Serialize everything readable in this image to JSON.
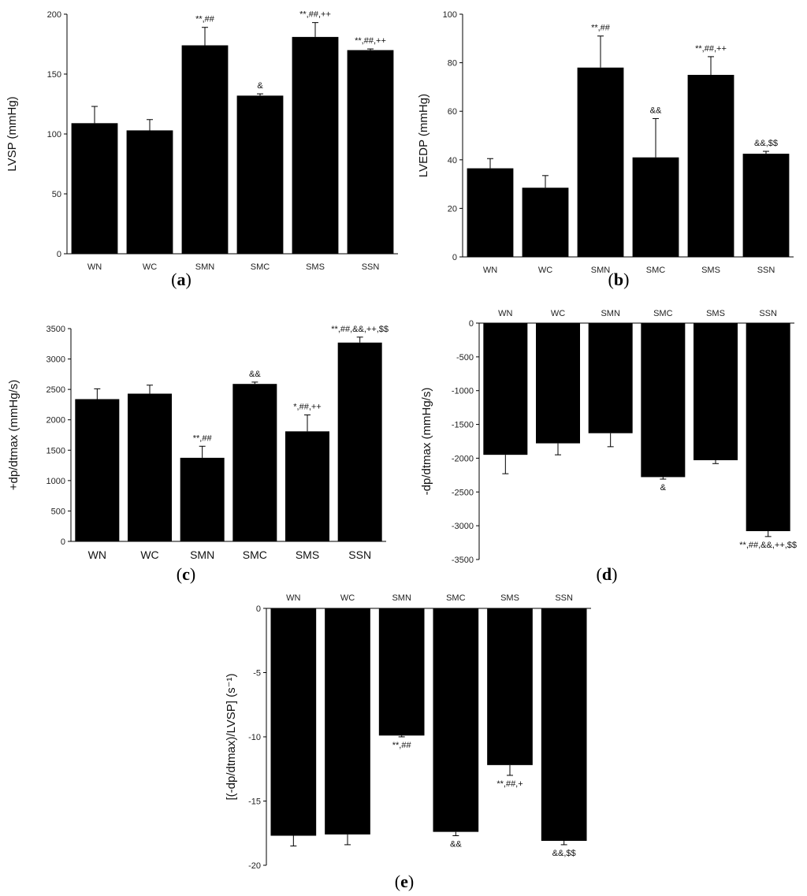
{
  "chart_data": [
    {
      "type": "bar",
      "panel": "(a)",
      "ylabel": "LVSP (mmHg)",
      "ylim": [
        0,
        200
      ],
      "yticks": [
        0,
        50,
        100,
        150,
        200
      ],
      "categories": [
        "WN",
        "WC",
        "SMN",
        "SMC",
        "SMS",
        "SSN"
      ],
      "values": [
        109,
        103,
        174,
        132,
        181,
        170
      ],
      "errors": [
        14,
        9,
        15,
        1.5,
        12,
        1
      ],
      "annotations": [
        "",
        "",
        "**,##",
        "&",
        "**,##,++",
        "**,##,++"
      ]
    },
    {
      "type": "bar",
      "panel": "(b)",
      "ylabel": "LVEDP (mmHg)",
      "ylim": [
        0,
        100
      ],
      "yticks": [
        0,
        20,
        40,
        60,
        80,
        100
      ],
      "categories": [
        "WN",
        "WC",
        "SMN",
        "SMC",
        "SMS",
        "SSN"
      ],
      "values": [
        36.5,
        28.5,
        78,
        41,
        75,
        42.5
      ],
      "errors": [
        4,
        5,
        13,
        16,
        7.5,
        1
      ],
      "annotations": [
        "",
        "",
        "**,##",
        "&&",
        "**,##,++",
        "&&,$$"
      ]
    },
    {
      "type": "bar",
      "panel": "(c)",
      "ylabel": "+dp/dtmax (mmHg/s)",
      "ylim": [
        0,
        3500
      ],
      "yticks": [
        0,
        500,
        1000,
        1500,
        2000,
        2500,
        3000,
        3500
      ],
      "categories": [
        "WN",
        "WC",
        "SMN",
        "SMC",
        "SMS",
        "SSN"
      ],
      "values": [
        2340,
        2430,
        1375,
        2590,
        1810,
        3270
      ],
      "errors": [
        170,
        140,
        190,
        30,
        270,
        90
      ],
      "annotations": [
        "",
        "",
        "**,##",
        "&&",
        "*,##,++",
        "**,##,&&,++,$$"
      ]
    },
    {
      "type": "bar",
      "panel": "(d)",
      "ylabel": "-dp/dtmax (mmHg/s)",
      "ylim": [
        -3500,
        0
      ],
      "yticks": [
        0,
        -500,
        -1000,
        -1500,
        -2000,
        -2500,
        -3000,
        -3500
      ],
      "categories": [
        "WN",
        "WC",
        "SMN",
        "SMC",
        "SMS",
        "SSN"
      ],
      "values": [
        -1950,
        -1780,
        -1630,
        -2280,
        -2030,
        -3080
      ],
      "errors": [
        280,
        170,
        200,
        30,
        50,
        80
      ],
      "annotations": [
        "",
        "",
        "",
        "&",
        "",
        "**,##,&&,++,$$"
      ]
    },
    {
      "type": "bar",
      "panel": "(e)",
      "ylabel": "[(-dp/dtmax)/LVSP] (s⁻¹)",
      "ylim": [
        -20,
        0
      ],
      "yticks": [
        0,
        -5,
        -10,
        -15,
        -20
      ],
      "categories": [
        "WN",
        "WC",
        "SMN",
        "SMC",
        "SMS",
        "SSN"
      ],
      "values": [
        -17.7,
        -17.6,
        -9.9,
        -17.4,
        -12.2,
        -18.1
      ],
      "errors": [
        0.8,
        0.8,
        0.1,
        0.3,
        0.8,
        0.3
      ],
      "annotations": [
        "",
        "",
        "**,##",
        "&&",
        "**,##,+",
        "&&,$$"
      ]
    }
  ]
}
